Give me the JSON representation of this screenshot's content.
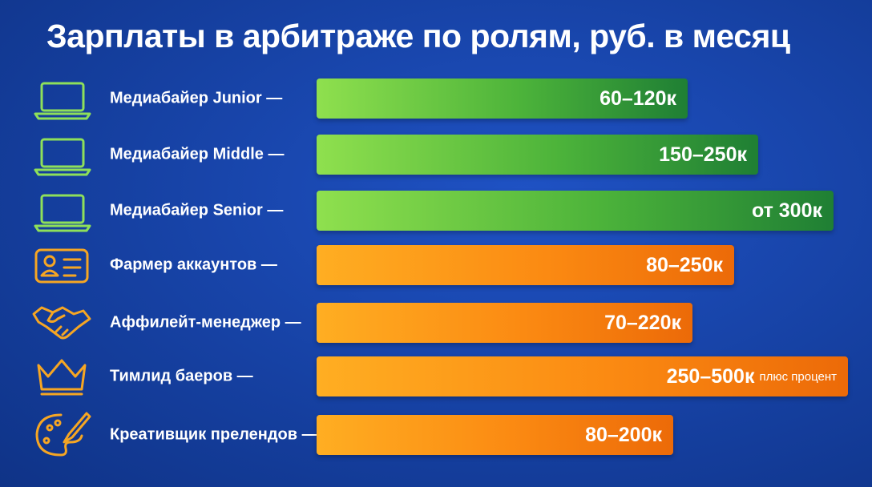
{
  "header": {
    "title": "Зарплаты в арбитраже по ролям, руб. в месяц"
  },
  "rows": [
    {
      "role": "Медиабайер Junior —",
      "salary": "60–120к"
    },
    {
      "role": "Медиабайер Middle —",
      "salary": "150–250к"
    },
    {
      "role": "Медиабайер Senior —",
      "salary": "от 300к"
    },
    {
      "role": "Фармер аккаунтов —",
      "salary": "80–250к"
    },
    {
      "role": "Аффилейт-менеджер —",
      "salary": "70–220к"
    },
    {
      "role": "Тимлид баеров —",
      "salary": "250–500к",
      "note": "плюс процент"
    },
    {
      "role": "Креативщик прелендов —",
      "salary": "80–200к"
    }
  ]
}
